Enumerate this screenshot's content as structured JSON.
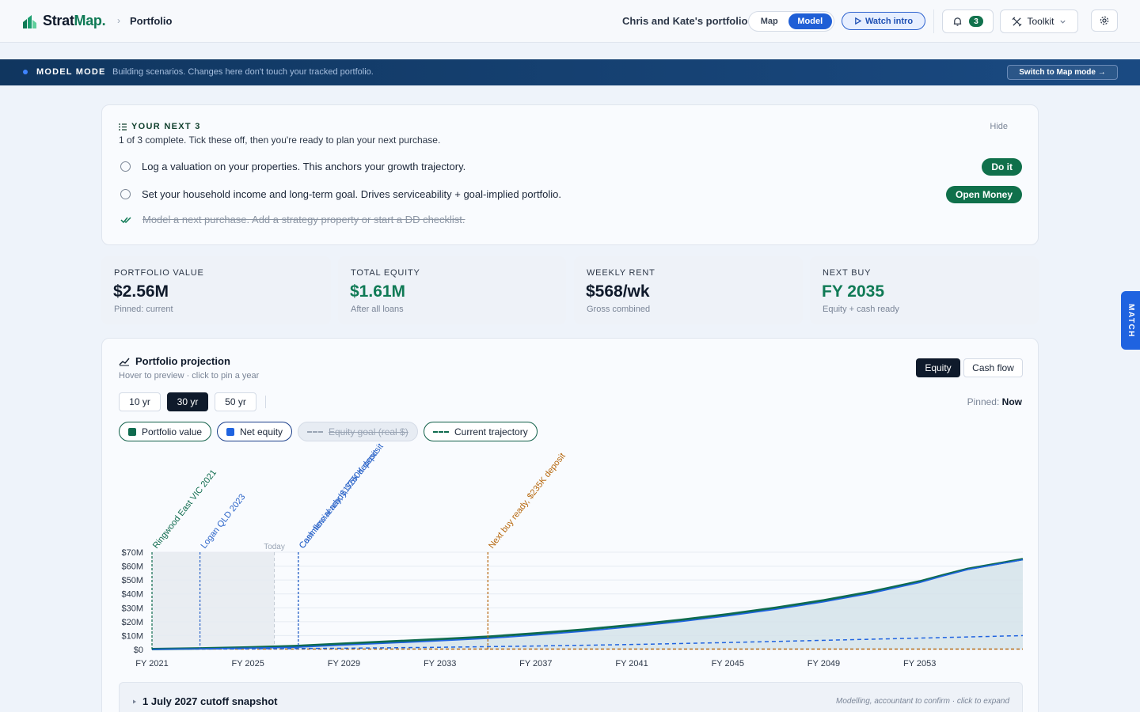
{
  "header": {
    "logo_main": "Strat",
    "logo_accent": "Map.",
    "breadcrumb_sep": "›",
    "breadcrumb": "Portfolio",
    "portfolio_name": "Chris and Kate's portfolio",
    "mode_toggle": {
      "map_label": "Map",
      "model_label": "Model",
      "selected": "Model"
    },
    "watch_intro_label": "Watch intro",
    "notification_count": "3",
    "toolkit_label": "Toolkit",
    "icons": [
      "bell-icon",
      "toolkit-icon",
      "gear-icon",
      "play-icon",
      "chevron-down-icon"
    ]
  },
  "banner": {
    "title": "MODEL MODE",
    "subtitle": "Building scenarios. Changes here don't touch your tracked portfolio.",
    "switch_label": "Switch to Map mode →"
  },
  "next3": {
    "title": "YOUR NEXT 3",
    "subtitle": "1 of 3 complete. Tick these off, then you're ready to plan your next purchase.",
    "hide_label": "Hide",
    "tasks": [
      {
        "label": "Log a valuation on your properties. This anchors your growth trajectory.",
        "done": false,
        "action": "Do it"
      },
      {
        "label": "Set your household income and long-term goal. Drives serviceability + goal-implied portfolio.",
        "done": false,
        "action": "Open Money"
      },
      {
        "label": "Model a next purchase. Add a strategy property or start a DD checklist.",
        "done": true,
        "action": ""
      }
    ]
  },
  "kpis": [
    {
      "label": "PORTFOLIO VALUE",
      "value": "$2.56M",
      "sub": "Pinned: current",
      "highlight": false
    },
    {
      "label": "TOTAL EQUITY",
      "value": "$1.61M",
      "sub": "After all loans",
      "highlight": true
    },
    {
      "label": "WEEKLY RENT",
      "value": "$568/wk",
      "sub": "Gross combined",
      "highlight": false
    },
    {
      "label": "NEXT BUY",
      "value": "FY 2035",
      "sub": "Equity + cash ready",
      "highlight": true
    }
  ],
  "match_tab": "MATCH",
  "projection": {
    "title": "Portfolio projection",
    "subtitle": "Hover to preview · click to pin a year",
    "view_toggle": {
      "equity_label": "Equity",
      "cashflow_label": "Cash flow",
      "selected": "Equity"
    },
    "ranges": [
      "10 yr",
      "30 yr",
      "50 yr"
    ],
    "selected_range": "30 yr",
    "pinned_label": "Pinned:",
    "pinned_value": "Now",
    "legend": [
      {
        "label": "Portfolio value",
        "color": "#0f6b4e",
        "style": "solid",
        "enabled": true
      },
      {
        "label": "Net equity",
        "color": "#1f63e0",
        "style": "solid",
        "enabled": true
      },
      {
        "label": "Equity goal (real $)",
        "color": "#9aa5b5",
        "style": "dashed",
        "enabled": false
      },
      {
        "label": "Current trajectory",
        "color": "#0f6b4e",
        "style": "dashed",
        "enabled": true
      }
    ]
  },
  "chart_data": {
    "type": "area",
    "x_ticks": [
      "FY 2021",
      "FY 2025",
      "FY 2029",
      "FY 2033",
      "FY 2037",
      "FY 2041",
      "FY 2045",
      "FY 2049",
      "FY 2053"
    ],
    "y_ticks": [
      "$0",
      "$10M",
      "$20M",
      "$30M",
      "$40M",
      "$50M",
      "$60M",
      "$70M"
    ],
    "ylim": [
      0,
      70
    ],
    "xlim": [
      2021,
      2057.3
    ],
    "today_label": "Today",
    "today_x": 2026.1,
    "history_shaded": [
      2021,
      2026.1
    ],
    "events": [
      {
        "x": 2021,
        "label": "Ringwood East VIC 2021",
        "color": "#0f6b4e"
      },
      {
        "x": 2023,
        "label": "Logan QLD 2023",
        "color": "#2a63c8"
      },
      {
        "x": 2027.1,
        "label": "Commercial ready, $250K deposit",
        "color": "#2a63c8"
      },
      {
        "x": 2027.1,
        "label": "Cash flow ready, $175K deposit",
        "color": "#2a63c8"
      },
      {
        "x": 2035,
        "label": "Next buy ready, $235K deposit",
        "color": "#b5650a"
      }
    ],
    "series": [
      {
        "name": "Portfolio value",
        "x": [
          2021,
          2023,
          2025,
          2027,
          2029,
          2031,
          2033,
          2035,
          2037,
          2039,
          2041,
          2043,
          2045,
          2047,
          2049,
          2051,
          2053,
          2054,
          2055,
          2057.3
        ],
        "values": [
          0.3,
          0.8,
          1.5,
          2.5,
          4.2,
          5.8,
          7.4,
          9.2,
          11.6,
          14.3,
          17.6,
          21.2,
          25.3,
          30.0,
          35.4,
          41.6,
          49.0,
          53.6,
          58.0,
          65.0
        ]
      },
      {
        "name": "Net equity",
        "x": [
          2021,
          2023,
          2025,
          2027,
          2029,
          2031,
          2033,
          2035,
          2037,
          2039,
          2041,
          2043,
          2045,
          2047,
          2049,
          2051,
          2053,
          2054,
          2055,
          2057.3
        ],
        "values": [
          0.2,
          0.5,
          1.0,
          1.6,
          3.2,
          4.7,
          6.3,
          8.0,
          10.4,
          13.1,
          16.4,
          20.0,
          24.2,
          28.9,
          34.3,
          40.6,
          48.2,
          53.0,
          57.5,
          64.6
        ]
      },
      {
        "name": "Current trajectory",
        "x": [
          2021,
          2025,
          2029,
          2033,
          2037,
          2041,
          2045,
          2049,
          2053,
          2057.3
        ],
        "values": [
          0.2,
          0.5,
          0.9,
          1.6,
          2.5,
          3.6,
          5.0,
          6.6,
          8.2,
          10.0
        ]
      }
    ],
    "baseline_dashed": {
      "color": "#b5650a",
      "value": 0.3
    },
    "grid": true
  },
  "snapshot": {
    "title": "1 July 2027 cutoff snapshot",
    "note": "Modelling, accountant to confirm · click to expand"
  }
}
